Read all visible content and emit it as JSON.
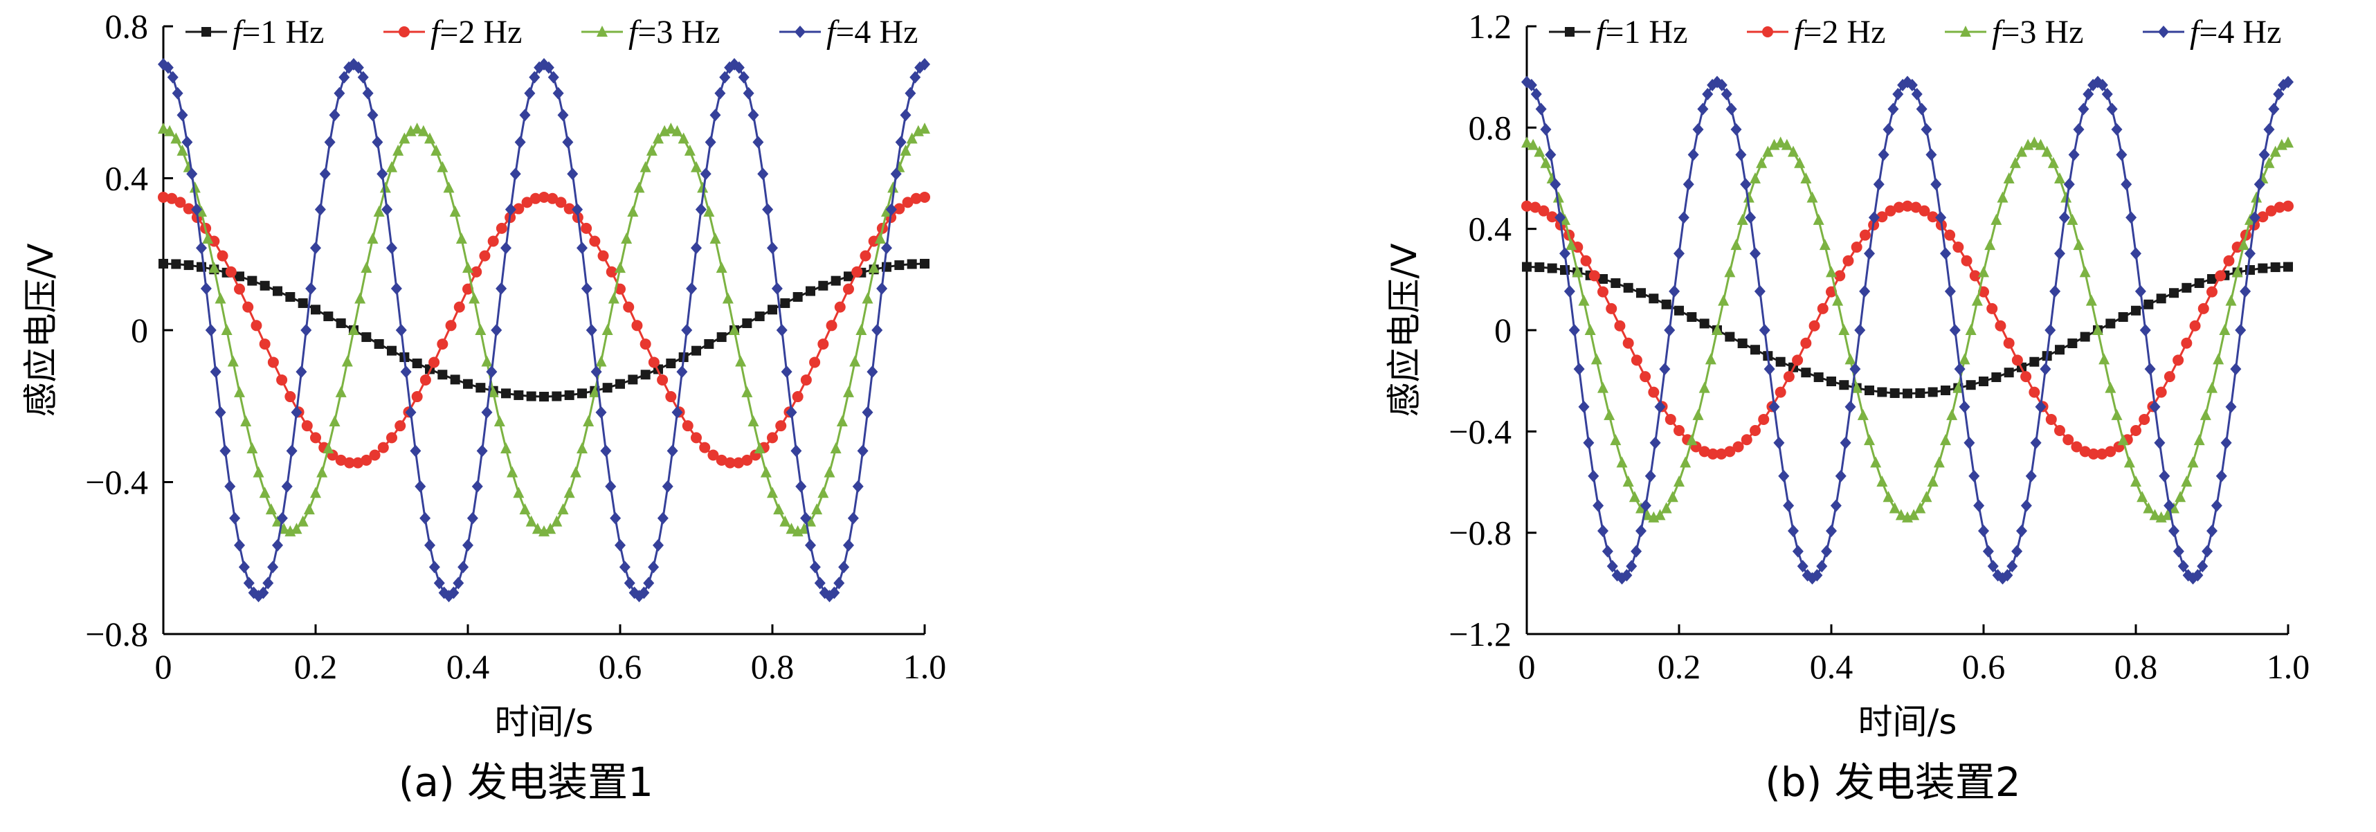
{
  "chart_data": [
    {
      "type": "line",
      "caption": "(a)  发电装置1",
      "xlabel": "时间/s",
      "ylabel": "感应电压/V",
      "xlim": [
        0,
        1.0
      ],
      "ylim": [
        -0.8,
        0.8
      ],
      "xticks": [
        "0",
        "0.2",
        "0.4",
        "0.6",
        "0.8",
        "1.0"
      ],
      "xtick_values": [
        0,
        0.2,
        0.4,
        0.6,
        0.8,
        1.0
      ],
      "yticks": [
        "−0.8",
        "−0.4",
        "0",
        "0.4",
        "0.8"
      ],
      "ytick_values": [
        -0.8,
        -0.4,
        0,
        0.4,
        0.8
      ],
      "legend_placement": "top",
      "series": [
        {
          "name": "f=1 Hz",
          "legend_var": "f",
          "legend_rest": "=1 Hz",
          "frequency": 1,
          "amplitude": 0.175,
          "marker": "square",
          "color": "#1a1a1a",
          "points": 60
        },
        {
          "name": "f=2 Hz",
          "legend_var": "f",
          "legend_rest": "=2 Hz",
          "frequency": 2,
          "amplitude": 0.35,
          "marker": "circle",
          "color": "#e8372f",
          "points": 90
        },
        {
          "name": "f=3 Hz",
          "legend_var": "f",
          "legend_rest": "=3 Hz",
          "frequency": 3,
          "amplitude": 0.53,
          "marker": "triangle",
          "color": "#7cb342",
          "points": 120
        },
        {
          "name": "f=4 Hz",
          "legend_var": "f",
          "legend_rest": "=4 Hz",
          "frequency": 4,
          "amplitude": 0.7,
          "marker": "diamond",
          "color": "#35409a",
          "points": 160
        }
      ]
    },
    {
      "type": "line",
      "caption": "(b)  发电装置2",
      "xlabel": "时间/s",
      "ylabel": "感应电压/V",
      "xlim": [
        0,
        1.0
      ],
      "ylim": [
        -1.2,
        1.2
      ],
      "xticks": [
        "0",
        "0.2",
        "0.4",
        "0.6",
        "0.8",
        "1.0"
      ],
      "xtick_values": [
        0,
        0.2,
        0.4,
        0.6,
        0.8,
        1.0
      ],
      "yticks": [
        "−1.2",
        "−0.8",
        "−0.4",
        "0",
        "0.4",
        "0.8",
        "1.2"
      ],
      "ytick_values": [
        -1.2,
        -0.8,
        -0.4,
        0,
        0.4,
        0.8,
        1.2
      ],
      "legend_placement": "top",
      "series": [
        {
          "name": "f=1 Hz",
          "legend_var": "f",
          "legend_rest": "=1 Hz",
          "frequency": 1,
          "amplitude": 0.25,
          "marker": "square",
          "color": "#1a1a1a",
          "points": 60
        },
        {
          "name": "f=2 Hz",
          "legend_var": "f",
          "legend_rest": "=2 Hz",
          "frequency": 2,
          "amplitude": 0.49,
          "marker": "circle",
          "color": "#e8372f",
          "points": 90
        },
        {
          "name": "f=3 Hz",
          "legend_var": "f",
          "legend_rest": "=3 Hz",
          "frequency": 3,
          "amplitude": 0.74,
          "marker": "triangle",
          "color": "#7cb342",
          "points": 120
        },
        {
          "name": "f=4 Hz",
          "legend_var": "f",
          "legend_rest": "=4 Hz",
          "frequency": 4,
          "amplitude": 0.98,
          "marker": "diamond",
          "color": "#35409a",
          "points": 160
        }
      ]
    }
  ]
}
